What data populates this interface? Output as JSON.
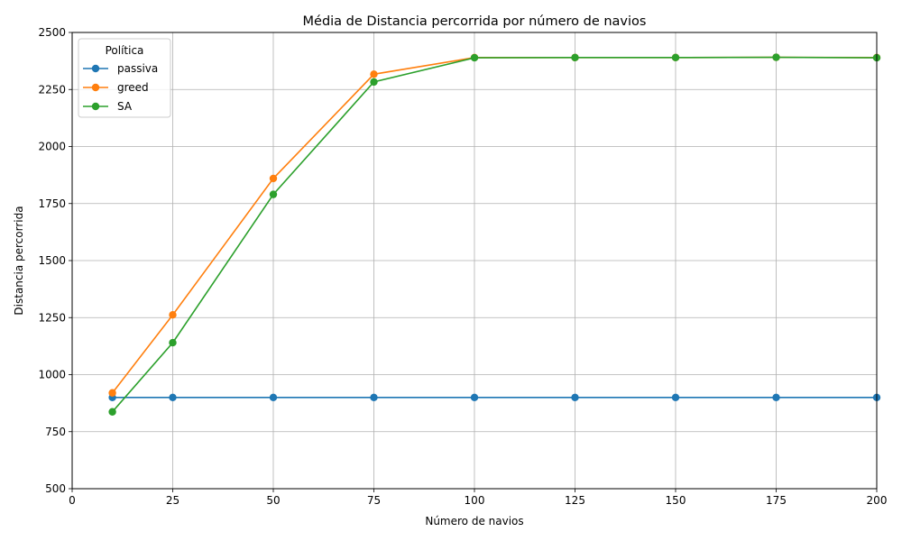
{
  "chart_data": {
    "type": "line",
    "title": "Média de Distancia percorrida por número de navios",
    "xlabel": "Número de navios",
    "ylabel": "Distancia percorrida",
    "xlim": [
      0,
      200
    ],
    "ylim": [
      500,
      2500
    ],
    "xticks": [
      0,
      25,
      50,
      75,
      100,
      125,
      150,
      175,
      200
    ],
    "yticks": [
      500,
      750,
      1000,
      1250,
      1500,
      1750,
      2000,
      2250,
      2500
    ],
    "grid": true,
    "legend": {
      "title": "Política",
      "placement": "top-left"
    },
    "x": [
      10,
      25,
      50,
      75,
      100,
      125,
      150,
      175,
      200
    ],
    "series": [
      {
        "name": "passiva",
        "color": "#1f77b4",
        "values": [
          900,
          900,
          900,
          900,
          900,
          900,
          900,
          900,
          900
        ]
      },
      {
        "name": "greed",
        "color": "#ff7f0e",
        "values": [
          920,
          1262,
          1860,
          2317,
          2390,
          2390,
          2390,
          2391,
          2390
        ]
      },
      {
        "name": "SA",
        "color": "#2ca02c",
        "values": [
          837,
          1140,
          1790,
          2283,
          2389,
          2390,
          2390,
          2391,
          2389
        ]
      }
    ]
  }
}
